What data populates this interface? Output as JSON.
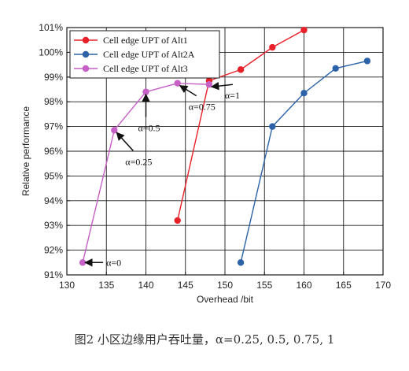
{
  "chart_data": {
    "type": "line",
    "xlabel": "Overhead /bit",
    "ylabel": "Relative performance",
    "xlim": [
      130,
      170
    ],
    "ylim": [
      91,
      101
    ],
    "xticks": [
      "130",
      "135",
      "140",
      "145",
      "150",
      "155",
      "160",
      "165",
      "170"
    ],
    "yticks": [
      "91%",
      "92%",
      "93%",
      "94%",
      "95%",
      "96%",
      "97%",
      "98%",
      "99%",
      "100%",
      "101%"
    ],
    "grid": true,
    "legend_position": "top-left",
    "series": [
      {
        "name": "Cell edge UPT of Alt1",
        "color": "#e8202a",
        "x": [
          144,
          148,
          152,
          156,
          160
        ],
        "y": [
          93.2,
          98.85,
          99.3,
          100.2,
          100.9
        ]
      },
      {
        "name": "Cell edge UPT of Alt2A",
        "color": "#2b62a8",
        "x": [
          152,
          156,
          160,
          164,
          168
        ],
        "y": [
          91.5,
          97.0,
          98.35,
          99.35,
          99.65
        ]
      },
      {
        "name": "Cell edge UPT of Alt3",
        "color": "#c65fc6",
        "x": [
          132,
          136,
          140,
          144,
          148
        ],
        "y": [
          91.5,
          96.85,
          98.4,
          98.75,
          98.7
        ]
      }
    ],
    "annotations": [
      {
        "text": "α=0",
        "x": 132,
        "y": 91.5
      },
      {
        "text": "α=0.25",
        "x": 136,
        "y": 96.85
      },
      {
        "text": "α=0.5",
        "x": 140,
        "y": 98.4
      },
      {
        "text": "α=0.75",
        "x": 144,
        "y": 98.75
      },
      {
        "text": "α=1",
        "x": 148,
        "y": 98.7
      }
    ]
  },
  "caption": "图2    小区边缘用户吞吐量，α=0.25, 0.5, 0.75, 1"
}
